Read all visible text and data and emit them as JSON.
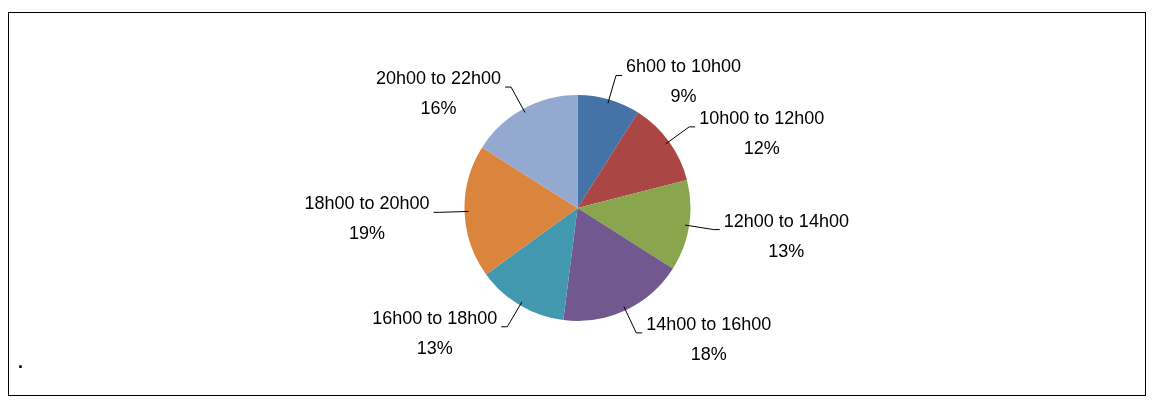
{
  "chart_data": {
    "type": "pie",
    "categories": [
      "6h00 to 10h00",
      "10h00 to 12h00",
      "12h00 to 14h00",
      "14h00 to 16h00",
      "16h00 to 18h00",
      "18h00 to 20h00",
      "20h00 to 22h00"
    ],
    "values": [
      9,
      12,
      13,
      18,
      13,
      19,
      16
    ],
    "colors": [
      "#4572a7",
      "#aa4643",
      "#89a54e",
      "#71588f",
      "#4198af",
      "#db843d",
      "#93a9cf"
    ],
    "value_labels": [
      "9%",
      "12%",
      "13%",
      "18%",
      "13%",
      "19%",
      "16%"
    ],
    "legend": false,
    "annotations": [
      "."
    ]
  }
}
